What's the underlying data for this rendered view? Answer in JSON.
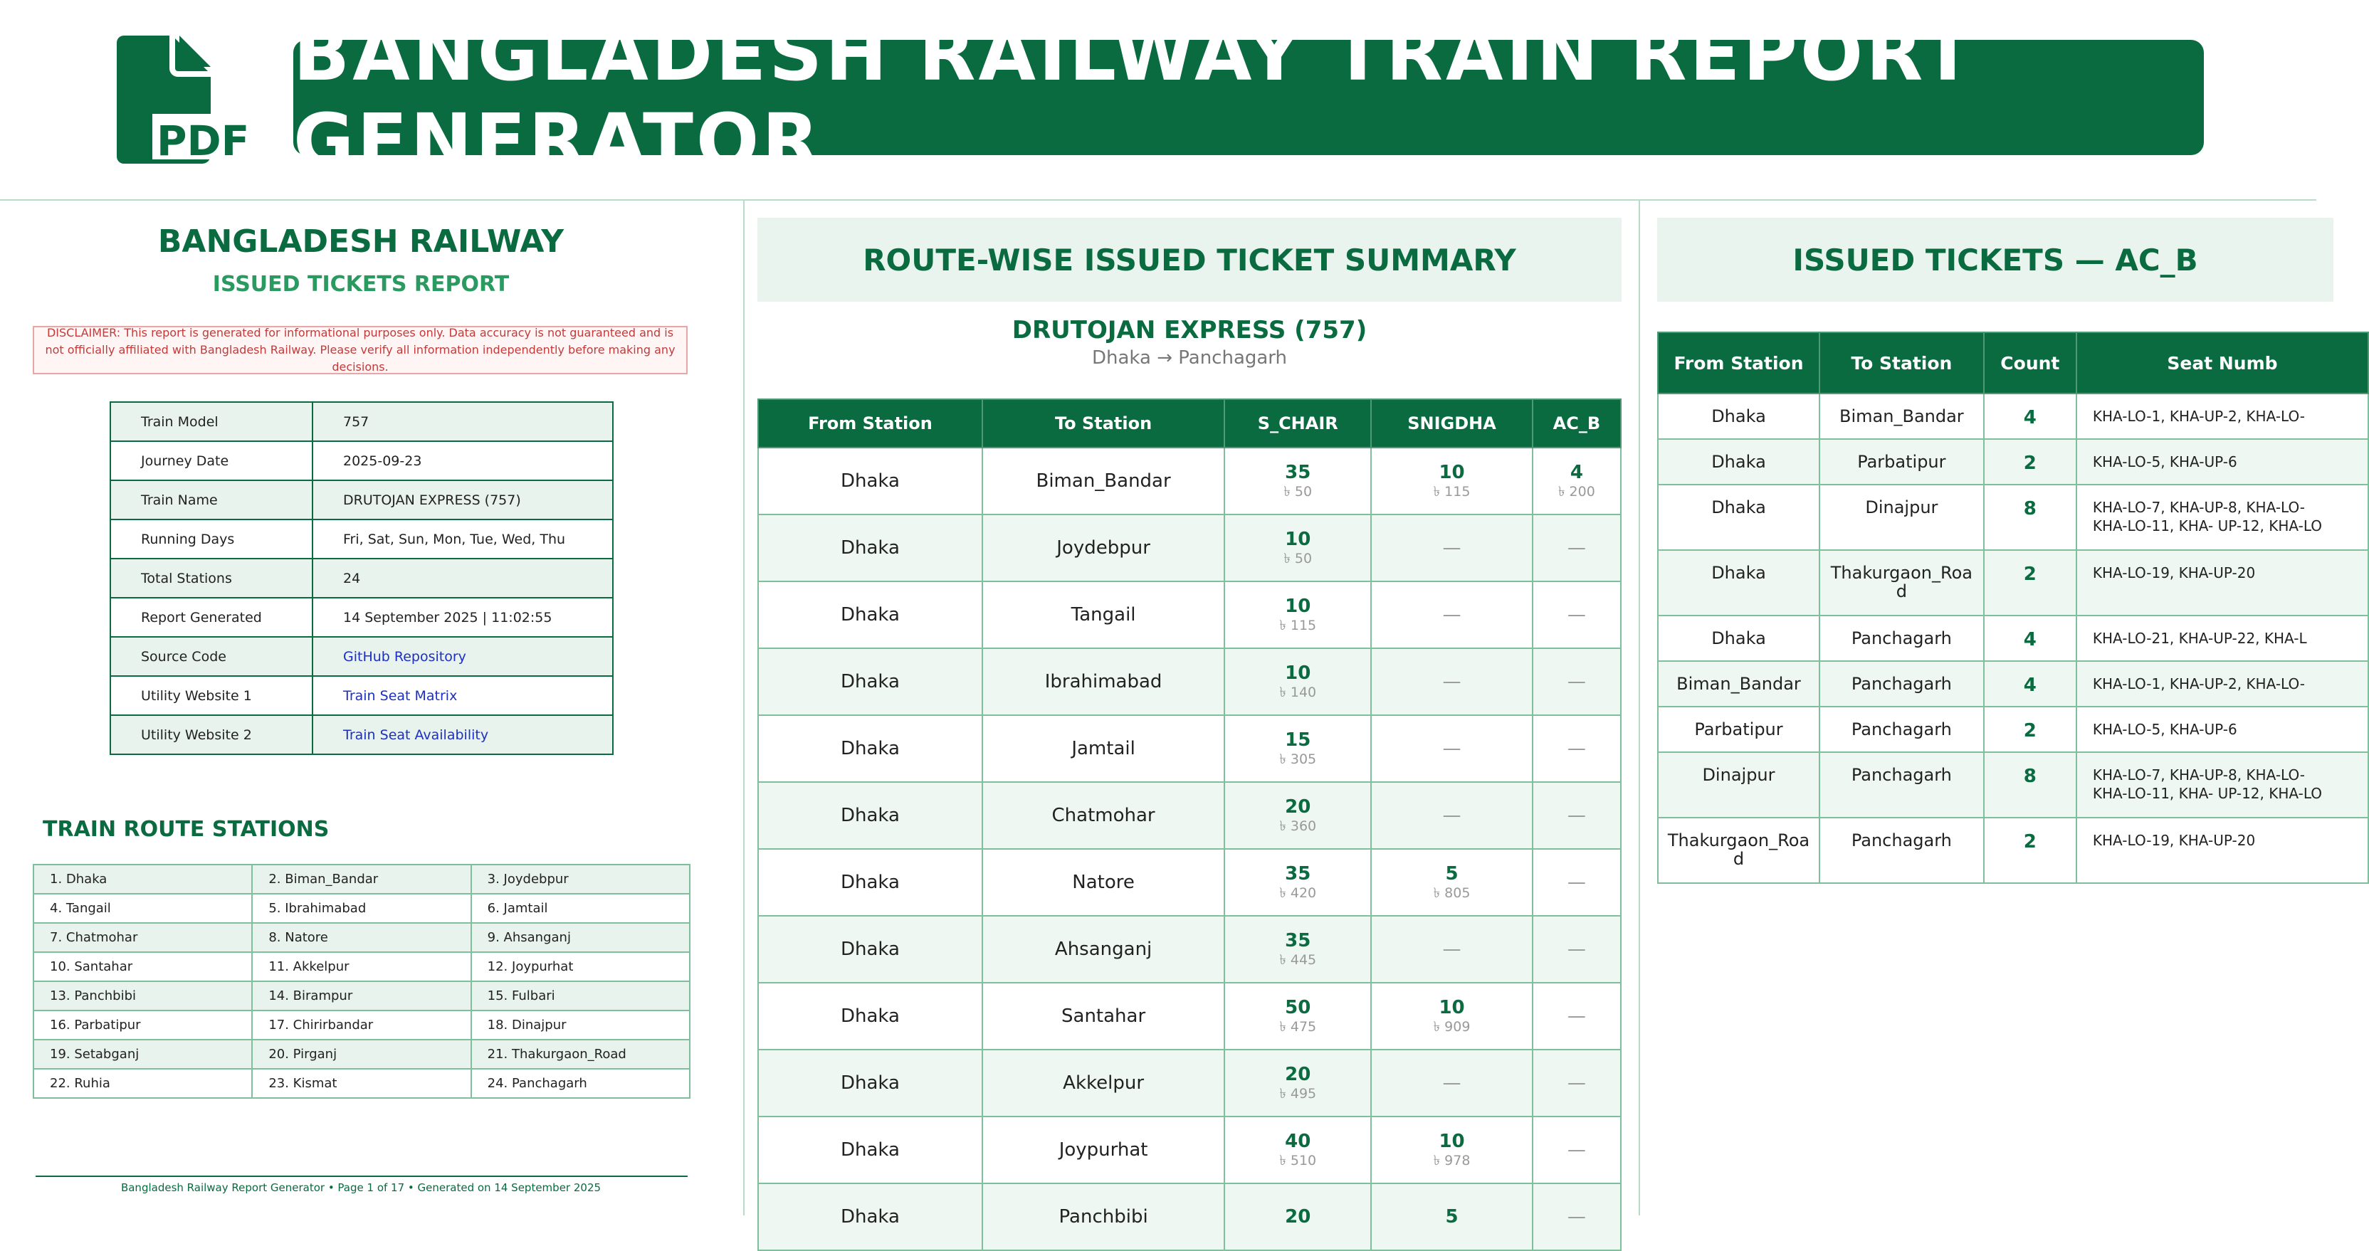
{
  "header": {
    "title": "BANGLADESH RAILWAY TRAIN REPORT GENERATOR",
    "pdf_icon_label": "PDF",
    "brand_color": "#0a6b40"
  },
  "report": {
    "title": "BANGLADESH RAILWAY",
    "subtitle": "ISSUED TICKETS REPORT",
    "disclaimer": "DISCLAIMER: This report is generated for informational purposes only. Data accuracy is not guaranteed and is not officially affiliated with Bangladesh Railway. Please verify all information independently before making any decisions.",
    "info": [
      {
        "key": "Train Model",
        "value": "757"
      },
      {
        "key": "Journey Date",
        "value": "2025-09-23"
      },
      {
        "key": "Train Name",
        "value": "DRUTOJAN EXPRESS (757)"
      },
      {
        "key": "Running Days",
        "value": "Fri, Sat, Sun, Mon, Tue, Wed, Thu"
      },
      {
        "key": "Total Stations",
        "value": "24"
      },
      {
        "key": "Report Generated",
        "value": "14 September 2025 | 11:02:55"
      },
      {
        "key": "Source Code",
        "value": "GitHub Repository"
      },
      {
        "key": "Utility Website 1",
        "value": "Train Seat Matrix"
      },
      {
        "key": "Utility Website 2",
        "value": "Train Seat Availability"
      }
    ],
    "route_title": "TRAIN ROUTE STATIONS",
    "stations": [
      [
        "1. Dhaka",
        "2. Biman_Bandar",
        "3. Joydebpur"
      ],
      [
        "4. Tangail",
        "5. Ibrahimabad",
        "6. Jamtail"
      ],
      [
        "7. Chatmohar",
        "8. Natore",
        "9. Ahsanganj"
      ],
      [
        "10. Santahar",
        "11. Akkelpur",
        "12. Joypurhat"
      ],
      [
        "13. Panchbibi",
        "14. Birampur",
        "15. Fulbari"
      ],
      [
        "16. Parbatipur",
        "17. Chirirbandar",
        "18. Dinajpur"
      ],
      [
        "19. Setabganj",
        "20. Pirganj",
        "21. Thakurgaon_Road"
      ],
      [
        "22. Ruhia",
        "23. Kismat",
        "24. Panchagarh"
      ]
    ],
    "footer": "Bangladesh Railway Report Generator  •  Page 1 of 17  •  Generated on 14 September 2025"
  },
  "summary": {
    "title": "ROUTE-WISE ISSUED TICKET SUMMARY",
    "train_name": "DRUTOJAN EXPRESS (757)",
    "route": "Dhaka → Panchagarh",
    "headers": [
      "From Station",
      "To Station",
      "S_CHAIR",
      "SNIGDHA",
      "AC_B"
    ],
    "rows": [
      {
        "from": "Dhaka",
        "to": "Biman_Bandar",
        "s_chair": {
          "count": "35",
          "fare": "৳ 50"
        },
        "snigdha": {
          "count": "10",
          "fare": "৳ 115"
        },
        "ac_b": {
          "count": "4",
          "fare": "৳ 200"
        }
      },
      {
        "from": "Dhaka",
        "to": "Joydebpur",
        "s_chair": {
          "count": "10",
          "fare": "৳ 50"
        },
        "snigdha": null,
        "ac_b": null
      },
      {
        "from": "Dhaka",
        "to": "Tangail",
        "s_chair": {
          "count": "10",
          "fare": "৳ 115"
        },
        "snigdha": null,
        "ac_b": null
      },
      {
        "from": "Dhaka",
        "to": "Ibrahimabad",
        "s_chair": {
          "count": "10",
          "fare": "৳ 140"
        },
        "snigdha": null,
        "ac_b": null
      },
      {
        "from": "Dhaka",
        "to": "Jamtail",
        "s_chair": {
          "count": "15",
          "fare": "৳ 305"
        },
        "snigdha": null,
        "ac_b": null
      },
      {
        "from": "Dhaka",
        "to": "Chatmohar",
        "s_chair": {
          "count": "20",
          "fare": "৳ 360"
        },
        "snigdha": null,
        "ac_b": null
      },
      {
        "from": "Dhaka",
        "to": "Natore",
        "s_chair": {
          "count": "35",
          "fare": "৳ 420"
        },
        "snigdha": {
          "count": "5",
          "fare": "৳ 805"
        },
        "ac_b": null
      },
      {
        "from": "Dhaka",
        "to": "Ahsanganj",
        "s_chair": {
          "count": "35",
          "fare": "৳ 445"
        },
        "snigdha": null,
        "ac_b": null
      },
      {
        "from": "Dhaka",
        "to": "Santahar",
        "s_chair": {
          "count": "50",
          "fare": "৳ 475"
        },
        "snigdha": {
          "count": "10",
          "fare": "৳ 909"
        },
        "ac_b": null
      },
      {
        "from": "Dhaka",
        "to": "Akkelpur",
        "s_chair": {
          "count": "20",
          "fare": "৳ 495"
        },
        "snigdha": null,
        "ac_b": null
      },
      {
        "from": "Dhaka",
        "to": "Joypurhat",
        "s_chair": {
          "count": "40",
          "fare": "৳ 510"
        },
        "snigdha": {
          "count": "10",
          "fare": "৳ 978"
        },
        "ac_b": null
      },
      {
        "from": "Dhaka",
        "to": "Panchbibi",
        "s_chair": {
          "count": "20",
          "fare": ""
        },
        "snigdha": {
          "count": "5",
          "fare": ""
        },
        "ac_b": null
      }
    ],
    "empty_mark": "—"
  },
  "tickets": {
    "title": "ISSUED TICKETS — AC_B",
    "headers": [
      "From Station",
      "To Station",
      "Count",
      "Seat Numb"
    ],
    "rows": [
      {
        "from": "Dhaka",
        "to": "Biman_Bandar",
        "count": "4",
        "seats": "KHA-LO-1, KHA-UP-2, KHA-LO-"
      },
      {
        "from": "Dhaka",
        "to": "Parbatipur",
        "count": "2",
        "seats": "KHA-LO-5, KHA-UP-6"
      },
      {
        "from": "Dhaka",
        "to": "Dinajpur",
        "count": "8",
        "seats": "KHA-LO-7, KHA-UP-8, KHA-LO-\nKHA-LO-11, KHA- UP-12, KHA-LO"
      },
      {
        "from": "Dhaka",
        "to": "Thakurgaon_Roa\nd",
        "count": "2",
        "seats": "KHA-LO-19, KHA-UP-20"
      },
      {
        "from": "Dhaka",
        "to": "Panchagarh",
        "count": "4",
        "seats": "KHA-LO-21, KHA-UP-22, KHA-L"
      },
      {
        "from": "Biman_Bandar",
        "to": "Panchagarh",
        "count": "4",
        "seats": "KHA-LO-1, KHA-UP-2, KHA-LO-"
      },
      {
        "from": "Parbatipur",
        "to": "Panchagarh",
        "count": "2",
        "seats": "KHA-LO-5, KHA-UP-6"
      },
      {
        "from": "Dinajpur",
        "to": "Panchagarh",
        "count": "8",
        "seats": "KHA-LO-7, KHA-UP-8, KHA-LO-\nKHA-LO-11, KHA- UP-12, KHA-LO"
      },
      {
        "from": "Thakurgaon_Roa\nd",
        "to": "Panchagarh",
        "count": "2",
        "seats": "KHA-LO-19, KHA-UP-20"
      }
    ]
  }
}
